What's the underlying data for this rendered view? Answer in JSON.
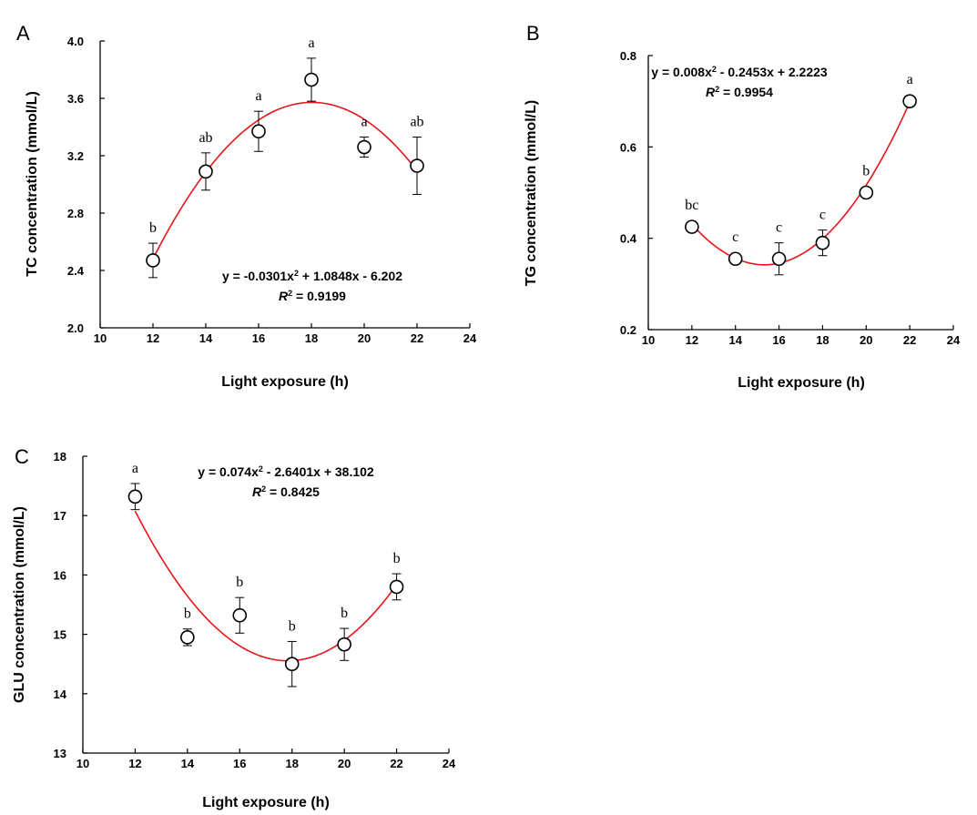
{
  "chart_data": [
    {
      "type": "scatter",
      "panel": "A",
      "xlabel": "Light exposure (h)",
      "ylabel": "TC concentration (mmol/L)",
      "xlim": [
        10,
        24
      ],
      "ylim": [
        2.0,
        4.0
      ],
      "xticks": [
        "10",
        "12",
        "14",
        "16",
        "18",
        "20",
        "22",
        "24"
      ],
      "yticks": [
        "2.0",
        "2.4",
        "2.8",
        "3.2",
        "3.6",
        "4.0"
      ],
      "grid": false,
      "x": [
        12,
        14,
        16,
        18,
        20,
        22
      ],
      "y": [
        2.47,
        3.09,
        3.37,
        3.73,
        3.26,
        3.13
      ],
      "yerr": [
        0.12,
        0.13,
        0.14,
        0.15,
        0.07,
        0.2
      ],
      "letters": [
        "b",
        "ab",
        "a",
        "a",
        "a",
        "ab"
      ],
      "fit": {
        "a": -0.0301,
        "b": 1.0848,
        "c": -6.202,
        "xmin": 12,
        "xmax": 22
      },
      "equation": "y = -0.0301x² + 1.0848x - 6.202",
      "r2_label": "R² = 0.9199"
    },
    {
      "type": "scatter",
      "panel": "B",
      "xlabel": "Light exposure (h)",
      "ylabel": "TG  concentration (mmol/L)",
      "xlim": [
        10,
        24
      ],
      "ylim": [
        0.2,
        0.8
      ],
      "xticks": [
        "10",
        "12",
        "14",
        "16",
        "18",
        "20",
        "22",
        "24"
      ],
      "yticks": [
        "0.2",
        "0.4",
        "0.6",
        "0.8"
      ],
      "grid": false,
      "x": [
        12,
        14,
        16,
        18,
        20,
        22
      ],
      "y": [
        0.425,
        0.355,
        0.355,
        0.39,
        0.5,
        0.7
      ],
      "yerr": [
        0.01,
        0.01,
        0.035,
        0.028,
        0.008,
        0.008
      ],
      "letters": [
        "bc",
        "c",
        "c",
        "c",
        "b",
        "a"
      ],
      "fit": {
        "a": 0.008,
        "b": -0.2453,
        "c": 2.2223,
        "xmin": 12,
        "xmax": 22
      },
      "equation": "y = 0.008x² - 0.2453x + 2.2223",
      "r2_label": "R² = 0.9954"
    },
    {
      "type": "scatter",
      "panel": "C",
      "xlabel": "Light exposure (h)",
      "ylabel": "GLU  concentration (mmol/L)",
      "xlim": [
        10,
        24
      ],
      "ylim": [
        13,
        18
      ],
      "xticks": [
        "10",
        "12",
        "14",
        "16",
        "18",
        "20",
        "22",
        "24"
      ],
      "yticks": [
        "13",
        "14",
        "15",
        "16",
        "17",
        "18"
      ],
      "grid": false,
      "x": [
        12,
        14,
        16,
        18,
        20,
        22
      ],
      "y": [
        17.32,
        14.95,
        15.32,
        14.5,
        14.83,
        15.8
      ],
      "yerr": [
        0.22,
        0.14,
        0.3,
        0.38,
        0.27,
        0.22
      ],
      "letters": [
        "a",
        "b",
        "b",
        "b",
        "b",
        "b"
      ],
      "fit": {
        "a": 0.074,
        "b": -2.6401,
        "c": 38.102,
        "xmin": 12,
        "xmax": 22
      },
      "equation": "y = 0.074x² - 2.6401x + 38.102",
      "r2_label": "R² = 0.8425"
    }
  ],
  "colors": {
    "fit_line": "#e8141b",
    "marker_edge": "#000000",
    "marker_fill": "#ffffff",
    "axis": "#000000"
  }
}
